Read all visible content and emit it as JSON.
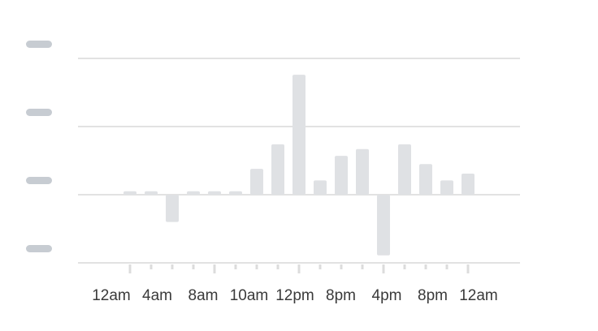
{
  "chart_data": {
    "type": "bar",
    "x_labels": [
      "12am",
      "4am",
      "8am",
      "10am",
      "12pm",
      "8pm",
      "4pm",
      "8pm",
      "12am"
    ],
    "values": [
      0.05,
      0.05,
      -0.4,
      0.05,
      0.05,
      0.05,
      0.38,
      0.74,
      1.76,
      0.21,
      0.57,
      0.67,
      -0.89,
      0.74,
      0.45,
      0.21,
      0.31
    ],
    "color": "#dfe1e4",
    "ylim": [
      -1,
      2
    ],
    "yticks": [
      -1,
      0,
      1,
      2
    ],
    "grid": true
  }
}
